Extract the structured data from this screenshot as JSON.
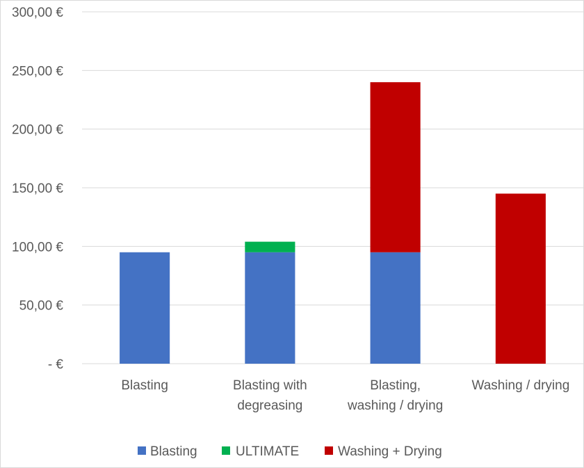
{
  "chart_data": {
    "type": "bar",
    "stacked": true,
    "title": "",
    "xlabel": "",
    "ylabel": "",
    "ylim": [
      0,
      300
    ],
    "grid": true,
    "legend_position": "bottom",
    "y_ticks": [
      {
        "value": 0,
        "label": "-   €"
      },
      {
        "value": 50,
        "label": "50,00 €"
      },
      {
        "value": 100,
        "label": "100,00 €"
      },
      {
        "value": 150,
        "label": "150,00 €"
      },
      {
        "value": 200,
        "label": "200,00 €"
      },
      {
        "value": 250,
        "label": "250,00 €"
      },
      {
        "value": 300,
        "label": "300,00 €"
      }
    ],
    "categories": [
      {
        "lines": [
          "Blasting"
        ]
      },
      {
        "lines": [
          "Blasting with",
          "degreasing"
        ]
      },
      {
        "lines": [
          "Blasting,",
          "washing / drying"
        ]
      },
      {
        "lines": [
          "Washing / drying"
        ]
      }
    ],
    "series": [
      {
        "name": "Blasting",
        "color": "#4472C4",
        "values": [
          95,
          95,
          95,
          0
        ]
      },
      {
        "name": "ULTIMATE",
        "color": "#00B050",
        "values": [
          0,
          9,
          0,
          0
        ]
      },
      {
        "name": "Washing + Drying",
        "color": "#C00000",
        "values": [
          0,
          0,
          145,
          145
        ]
      }
    ]
  }
}
